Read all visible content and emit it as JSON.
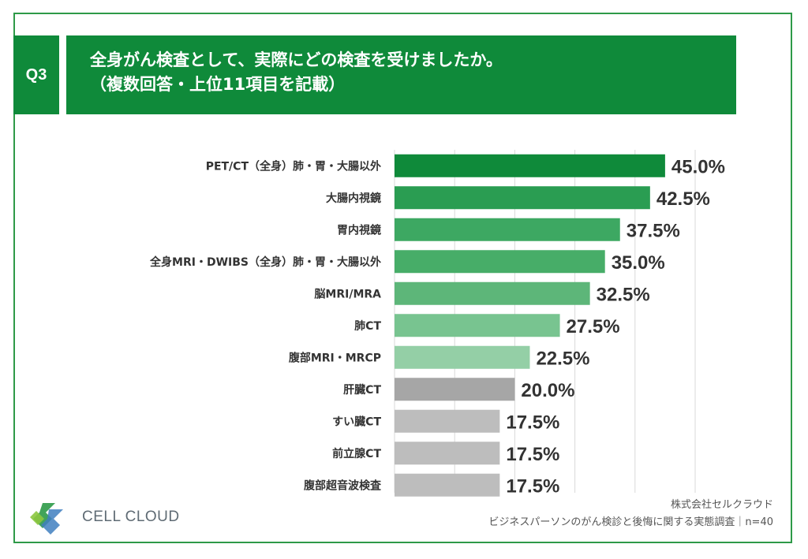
{
  "header": {
    "badge": "Q3",
    "title_line1": "全身がん検査として、実際にどの検査を受けましたか。",
    "title_line2": "（複数回答・上位11項目を記載）"
  },
  "chart_data": {
    "type": "bar",
    "orientation": "horizontal",
    "categories": [
      "PET/CT（全身）肺・胃・大腸以外",
      "大腸内視鏡",
      "胃内視鏡",
      "全身MRI・DWIBS（全身）肺・胃・大腸以外",
      "脳MRI/MRA",
      "肺CT",
      "腹部MRI・MRCP",
      "肝臓CT",
      "すい臓CT",
      "前立腺CT",
      "腹部超音波検査"
    ],
    "values": [
      45.0,
      42.5,
      37.5,
      35.0,
      32.5,
      27.5,
      22.5,
      20.0,
      17.5,
      17.5,
      17.5
    ],
    "value_labels": [
      "45.0%",
      "42.5%",
      "37.5%",
      "35.0%",
      "32.5%",
      "27.5%",
      "22.5%",
      "20.0%",
      "17.5%",
      "17.5%",
      "17.5%"
    ],
    "colors": [
      "#0f8a3a",
      "#2a9d52",
      "#3da862",
      "#47ad68",
      "#5db679",
      "#78c490",
      "#94cfa6",
      "#a6a6a6",
      "#bdbdbd",
      "#bdbdbd",
      "#bdbdbd"
    ],
    "xlim": [
      0,
      50
    ],
    "grid": true
  },
  "footer": {
    "logo_text": "CELL CLOUD",
    "company": "株式会社セルクラウド",
    "survey": "ビジネスパーソンのがん検診と後悔に関する実態調査｜n=40"
  }
}
